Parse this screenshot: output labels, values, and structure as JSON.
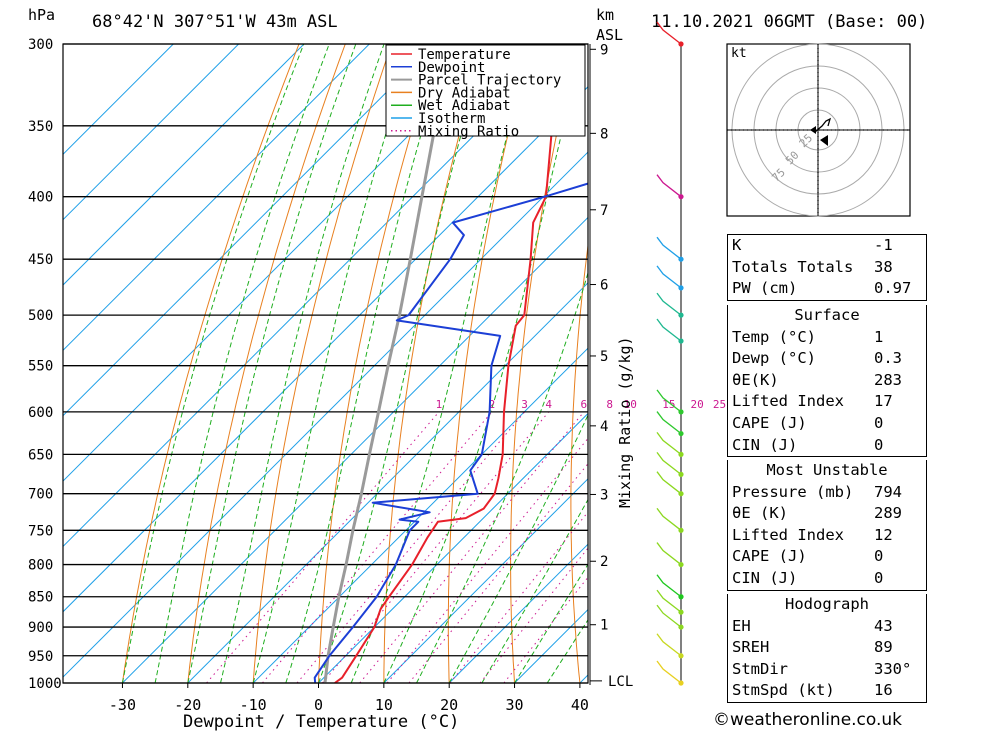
{
  "header": {
    "hpa_unit": "hPa",
    "location": "68°42'N  307°51'W  43m  ASL",
    "km_unit": "km",
    "km_sub": "ASL",
    "datetime": "11.10.2021  06GMT  (Base: 00)"
  },
  "chart_data": {
    "type": "skew-T log-P",
    "xlabel": "Dewpoint / Temperature (°C)",
    "ylabel_right": "Mixing Ratio (g/kg)",
    "x_ticks": [
      -30,
      -20,
      -10,
      0,
      10,
      20,
      30,
      40
    ],
    "pressure_levels": [
      300,
      350,
      400,
      450,
      500,
      550,
      600,
      650,
      700,
      750,
      800,
      850,
      900,
      950,
      1000
    ],
    "km_labels": [
      {
        "km": "1",
        "p": 896
      },
      {
        "km": "2",
        "p": 795
      },
      {
        "km": "3",
        "p": 701
      },
      {
        "km": "4",
        "p": 616
      },
      {
        "km": "5",
        "p": 540
      },
      {
        "km": "6",
        "p": 472
      },
      {
        "km": "7",
        "p": 410
      },
      {
        "km": "8",
        "p": 355
      },
      {
        "km": "9",
        "p": 303
      }
    ],
    "lcl_label": "LCL",
    "mixing_ratio_labels": [
      "1",
      "2",
      "3",
      "4",
      "6",
      "8",
      "10",
      "15",
      "20",
      "25"
    ],
    "colors": {
      "temperature": "#e8202a",
      "dewpoint": "#1c3fd6",
      "parcel": "#9a9a9a",
      "dry_adiabat": "#e88020",
      "wet_adiabat": "#1fae1f",
      "isotherm": "#1fa0e8",
      "mixing_ratio": "#cc1890"
    },
    "legend": [
      "Temperature",
      "Dewpoint",
      "Parcel Trajectory",
      "Dry Adiabat",
      "Wet Adiabat",
      "Isotherm",
      "Mixing Ratio"
    ],
    "temperature": [
      {
        "p": 1000,
        "t": 2.5
      },
      {
        "p": 990,
        "t": 2.8
      },
      {
        "p": 950,
        "t": 1.6
      },
      {
        "p": 900,
        "t": 0
      },
      {
        "p": 870,
        "t": -1.8
      },
      {
        "p": 850,
        "t": -2.4
      },
      {
        "p": 800,
        "t": -3.8
      },
      {
        "p": 760,
        "t": -5.6
      },
      {
        "p": 738,
        "t": -6.4
      },
      {
        "p": 733,
        "t": -2.7
      },
      {
        "p": 720,
        "t": -1.4
      },
      {
        "p": 700,
        "t": -2
      },
      {
        "p": 680,
        "t": -3.8
      },
      {
        "p": 650,
        "t": -6.8
      },
      {
        "p": 600,
        "t": -13.1
      },
      {
        "p": 550,
        "t": -19.5
      },
      {
        "p": 510,
        "t": -24.5
      },
      {
        "p": 500,
        "t": -24.8
      },
      {
        "p": 450,
        "t": -32.4
      },
      {
        "p": 420,
        "t": -37.6
      },
      {
        "p": 400,
        "t": -39.6
      },
      {
        "p": 350,
        "t": -49.5
      },
      {
        "p": 300,
        "t": -61
      }
    ],
    "dewpoint": [
      {
        "p": 1000,
        "t": -0.5
      },
      {
        "p": 990,
        "t": -1.4
      },
      {
        "p": 950,
        "t": -2.5
      },
      {
        "p": 900,
        "t": -3.3
      },
      {
        "p": 850,
        "t": -4.3
      },
      {
        "p": 800,
        "t": -6.3
      },
      {
        "p": 750,
        "t": -9.4
      },
      {
        "p": 738,
        "t": -9.4
      },
      {
        "p": 735,
        "t": -12.6
      },
      {
        "p": 725,
        "t": -9.1
      },
      {
        "p": 712,
        "t": -19.3
      },
      {
        "p": 700,
        "t": -4.6
      },
      {
        "p": 670,
        "t": -9.3
      },
      {
        "p": 650,
        "t": -10
      },
      {
        "p": 600,
        "t": -15.3
      },
      {
        "p": 550,
        "t": -22.1
      },
      {
        "p": 520,
        "t": -25.3
      },
      {
        "p": 505,
        "t": -43.5
      },
      {
        "p": 500,
        "t": -42.5
      },
      {
        "p": 450,
        "t": -44.7
      },
      {
        "p": 430,
        "t": -46.3
      },
      {
        "p": 420,
        "t": -49.9
      },
      {
        "p": 400,
        "t": -39.8
      },
      {
        "p": 385,
        "t": -32.7
      },
      {
        "p": 300,
        "t": -44.2
      }
    ],
    "parcel": [
      {
        "p": 1000,
        "t": 1
      },
      {
        "p": 950,
        "t": -2.7
      },
      {
        "p": 900,
        "t": -6.3
      },
      {
        "p": 850,
        "t": -10.1
      },
      {
        "p": 800,
        "t": -13.9
      },
      {
        "p": 750,
        "t": -18.1
      },
      {
        "p": 700,
        "t": -22.4
      },
      {
        "p": 650,
        "t": -27.2
      },
      {
        "p": 600,
        "t": -32.3
      },
      {
        "p": 550,
        "t": -37.9
      },
      {
        "p": 500,
        "t": -43.9
      },
      {
        "p": 450,
        "t": -50.8
      },
      {
        "p": 400,
        "t": -58.6
      },
      {
        "p": 350,
        "t": -67.4
      },
      {
        "p": 300,
        "t": -77.8
      }
    ],
    "wind_profile": [
      {
        "p": 300,
        "color": "#e8202a"
      },
      {
        "p": 400,
        "color": "#cc1890"
      },
      {
        "p": 450,
        "color": "#1fa0e8"
      },
      {
        "p": 475,
        "color": "#1fa0e8"
      },
      {
        "p": 500,
        "color": "#1fb890"
      },
      {
        "p": 525,
        "color": "#1fb890"
      },
      {
        "p": 600,
        "color": "#2ec82e"
      },
      {
        "p": 625,
        "color": "#2ec82e"
      },
      {
        "p": 650,
        "color": "#8cd820"
      },
      {
        "p": 675,
        "color": "#8cd820"
      },
      {
        "p": 700,
        "color": "#8cd820"
      },
      {
        "p": 750,
        "color": "#8cd820"
      },
      {
        "p": 800,
        "color": "#8cd820"
      },
      {
        "p": 850,
        "color": "#1fc81f"
      },
      {
        "p": 875,
        "color": "#8cd820"
      },
      {
        "p": 900,
        "color": "#8cd820"
      },
      {
        "p": 950,
        "color": "#c8d820"
      },
      {
        "p": 1000,
        "color": "#e8d020"
      }
    ],
    "hodograph": {
      "unit": "kt",
      "ring_labels": [
        "25",
        "50",
        "75"
      ]
    }
  },
  "indices": [
    {
      "label": "K",
      "value": "-1"
    },
    {
      "label": "Totals Totals",
      "value": "38"
    },
    {
      "label": "PW (cm)",
      "value": "0.97"
    }
  ],
  "surface": {
    "title": "Surface",
    "rows": [
      {
        "label": "Temp (°C)",
        "value": "1"
      },
      {
        "label": "Dewp (°C)",
        "value": "0.3"
      },
      {
        "label": "θE(K)",
        "value": "283"
      },
      {
        "label": "Lifted Index",
        "value": "17"
      },
      {
        "label": "CAPE (J)",
        "value": "0"
      },
      {
        "label": "CIN (J)",
        "value": "0"
      }
    ]
  },
  "most_unstable": {
    "title": "Most Unstable",
    "rows": [
      {
        "label": "Pressure (mb)",
        "value": "794"
      },
      {
        "label": "θE (K)",
        "value": "289"
      },
      {
        "label": "Lifted Index",
        "value": "12"
      },
      {
        "label": "CAPE (J)",
        "value": "0"
      },
      {
        "label": "CIN (J)",
        "value": "0"
      }
    ]
  },
  "hodograph_table": {
    "title": "Hodograph",
    "rows": [
      {
        "label": "EH",
        "value": "43"
      },
      {
        "label": "SREH",
        "value": "89"
      },
      {
        "label": "StmDir",
        "value": "330°"
      },
      {
        "label": "StmSpd (kt)",
        "value": "16"
      }
    ]
  },
  "watermark": "©weatheronline.co.uk"
}
